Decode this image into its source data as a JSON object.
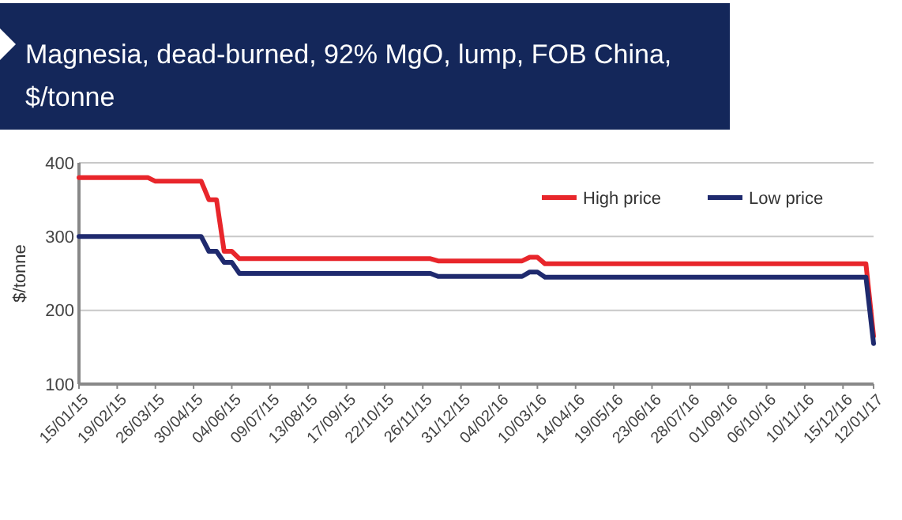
{
  "chart_data": {
    "type": "line",
    "title": "Magnesia, dead-burned, 92% MgO, lump, FOB China, $/tonne",
    "ylabel": "$/tonne",
    "series": [
      {
        "name": "High price",
        "color": "#e8262b",
        "x": [
          "2015-01-15",
          "2015-03-19",
          "2015-03-26",
          "2015-05-07",
          "2015-05-14",
          "2015-05-21",
          "2015-05-28",
          "2015-06-04",
          "2015-06-11",
          "2015-12-03",
          "2015-12-10",
          "2016-02-25",
          "2016-03-03",
          "2016-03-10",
          "2016-03-17",
          "2017-01-05",
          "2017-01-12"
        ],
        "values": [
          380,
          380,
          375,
          375,
          350,
          350,
          280,
          280,
          270,
          270,
          267,
          267,
          272,
          272,
          263,
          263,
          165
        ]
      },
      {
        "name": "Low price",
        "color": "#1f2a6e",
        "x": [
          "2015-01-15",
          "2015-05-07",
          "2015-05-14",
          "2015-05-21",
          "2015-05-28",
          "2015-06-04",
          "2015-06-11",
          "2015-12-03",
          "2015-12-10",
          "2016-02-25",
          "2016-03-03",
          "2016-03-10",
          "2016-03-17",
          "2017-01-05",
          "2017-01-12"
        ],
        "values": [
          300,
          300,
          280,
          280,
          265,
          265,
          250,
          250,
          246,
          246,
          252,
          252,
          245,
          245,
          155
        ]
      }
    ],
    "xlim": [
      "2015-01-15",
      "2017-01-12"
    ],
    "xticks": [
      {
        "value": "2015-01-15",
        "label": "15/01/15"
      },
      {
        "value": "2015-02-19",
        "label": "19/02/15"
      },
      {
        "value": "2015-03-26",
        "label": "26/03/15"
      },
      {
        "value": "2015-04-30",
        "label": "30/04/15"
      },
      {
        "value": "2015-06-04",
        "label": "04/06/15"
      },
      {
        "value": "2015-07-09",
        "label": "09/07/15"
      },
      {
        "value": "2015-08-13",
        "label": "13/08/15"
      },
      {
        "value": "2015-09-17",
        "label": "17/09/15"
      },
      {
        "value": "2015-10-22",
        "label": "22/10/15"
      },
      {
        "value": "2015-11-26",
        "label": "26/11/15"
      },
      {
        "value": "2015-12-31",
        "label": "31/12/15"
      },
      {
        "value": "2016-02-04",
        "label": "04/02/16"
      },
      {
        "value": "2016-03-10",
        "label": "10/03/16"
      },
      {
        "value": "2016-04-14",
        "label": "14/04/16"
      },
      {
        "value": "2016-05-19",
        "label": "19/05/16"
      },
      {
        "value": "2016-06-23",
        "label": "23/06/16"
      },
      {
        "value": "2016-07-28",
        "label": "28/07/16"
      },
      {
        "value": "2016-09-01",
        "label": "01/09/16"
      },
      {
        "value": "2016-10-06",
        "label": "06/10/16"
      },
      {
        "value": "2016-11-10",
        "label": "10/11/16"
      },
      {
        "value": "2016-12-15",
        "label": "15/12/16"
      },
      {
        "value": "2017-01-12",
        "label": "12/01/17"
      }
    ],
    "ylim": [
      100,
      400
    ],
    "yticks": [
      100,
      200,
      300,
      400
    ],
    "grid": "y",
    "legend": "top right",
    "marker": "none",
    "line_style": "solid"
  }
}
